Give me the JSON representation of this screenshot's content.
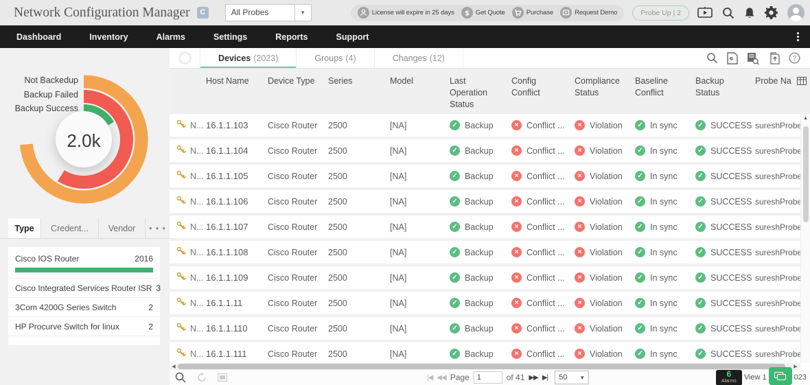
{
  "header": {
    "title": "Network Configuration Manager",
    "logo_badge": "C",
    "probe_selector": {
      "value": "All Probes",
      "arrow": "▾"
    },
    "license_bar": [
      {
        "icon": "license-icon",
        "label": "License will expire in 25 days"
      },
      {
        "icon": "get-quote-icon",
        "label": "Get Quote"
      },
      {
        "icon": "purchase-icon",
        "label": "Purchase"
      },
      {
        "icon": "request-demo-icon",
        "label": "Request Demo"
      }
    ],
    "probe_up_label": "Probe Up | 2"
  },
  "nav": {
    "items": [
      "Dashboard",
      "Inventory",
      "Alarms",
      "Settings",
      "Reports",
      "Support"
    ]
  },
  "sidebar": {
    "tabs": [
      {
        "label": "Type",
        "active": true
      },
      {
        "label": "Credent...",
        "active": false
      },
      {
        "label": "Vendor",
        "active": false
      },
      {
        "label": "• • •",
        "active": false
      }
    ],
    "list": [
      {
        "label": "Cisco IOS Router",
        "value": "2016",
        "bar": true
      },
      {
        "label": "Cisco Integrated Services Router ISR",
        "value": "3"
      },
      {
        "label": "3Com 4200G Series Switch",
        "value": "2"
      },
      {
        "label": "HP Procurve Switch for linux",
        "value": "2"
      }
    ]
  },
  "chart_data": {
    "type": "donut",
    "title": "",
    "center_label": "2.0k",
    "legend_position": "left",
    "segments": [
      {
        "label": "Not Backedup",
        "color": "#f4a44f",
        "sweep_deg": 265,
        "radius": 84,
        "thickness": 19
      },
      {
        "label": "Backup Failed",
        "color": "#f25b52",
        "sweep_deg": 212,
        "radius": 62.5,
        "thickness": 19
      },
      {
        "label": "Backup Success",
        "color": "#3fb06b",
        "sweep_deg": 60,
        "radius": 40,
        "thickness": 22
      }
    ]
  },
  "main": {
    "tabs": [
      {
        "label": "Devices",
        "count": "(2023)",
        "active": true
      },
      {
        "label": "Groups",
        "count": "(4)",
        "active": false
      },
      {
        "label": "Changes",
        "count": "(12)",
        "active": false
      }
    ]
  },
  "table": {
    "columns": [
      "Host Name",
      "Device Type",
      "Series",
      "Model",
      "Last Operation Status",
      "Config Conflict",
      "Compliance Status",
      "Baseline Conflict",
      "Backup Status",
      "Probe Na"
    ],
    "rows": [
      {
        "name": "N...",
        "host": "16.1.1.103",
        "device_type": "Cisco Router",
        "series": "2500",
        "model": "[NA]",
        "last_operation": {
          "text": "Backup",
          "state": "ok"
        },
        "config_conflict": {
          "text": "Conflict ...",
          "state": "bad"
        },
        "compliance": {
          "text": "Violation",
          "state": "bad"
        },
        "baseline": {
          "text": "In sync",
          "state": "ok"
        },
        "backup_status": {
          "text": "SUCCESS",
          "state": "ok"
        },
        "probe": "sureshProbe"
      },
      {
        "name": "N...",
        "host": "16.1.1.104",
        "device_type": "Cisco Router",
        "series": "2500",
        "model": "[NA]",
        "last_operation": {
          "text": "Backup",
          "state": "ok"
        },
        "config_conflict": {
          "text": "Conflict ...",
          "state": "bad"
        },
        "compliance": {
          "text": "Violation",
          "state": "bad"
        },
        "baseline": {
          "text": "In sync",
          "state": "ok"
        },
        "backup_status": {
          "text": "SUCCESS",
          "state": "ok"
        },
        "probe": "sureshProbe"
      },
      {
        "name": "N...",
        "host": "16.1.1.105",
        "device_type": "Cisco Router",
        "series": "2500",
        "model": "[NA]",
        "last_operation": {
          "text": "Backup",
          "state": "ok"
        },
        "config_conflict": {
          "text": "Conflict ...",
          "state": "bad"
        },
        "compliance": {
          "text": "Violation",
          "state": "bad"
        },
        "baseline": {
          "text": "In sync",
          "state": "ok"
        },
        "backup_status": {
          "text": "SUCCESS",
          "state": "ok"
        },
        "probe": "sureshProbe"
      },
      {
        "name": "N...",
        "host": "16.1.1.106",
        "device_type": "Cisco Router",
        "series": "2500",
        "model": "[NA]",
        "last_operation": {
          "text": "Backup",
          "state": "ok"
        },
        "config_conflict": {
          "text": "Conflict ...",
          "state": "bad"
        },
        "compliance": {
          "text": "Violation",
          "state": "bad"
        },
        "baseline": {
          "text": "In sync",
          "state": "ok"
        },
        "backup_status": {
          "text": "SUCCESS",
          "state": "ok"
        },
        "probe": "sureshProbe"
      },
      {
        "name": "N...",
        "host": "16.1.1.107",
        "device_type": "Cisco Router",
        "series": "2500",
        "model": "[NA]",
        "last_operation": {
          "text": "Backup",
          "state": "ok"
        },
        "config_conflict": {
          "text": "Conflict ...",
          "state": "bad"
        },
        "compliance": {
          "text": "Violation",
          "state": "bad"
        },
        "baseline": {
          "text": "In sync",
          "state": "ok"
        },
        "backup_status": {
          "text": "SUCCESS",
          "state": "ok"
        },
        "probe": "sureshProbe"
      },
      {
        "name": "N...",
        "host": "16.1.1.108",
        "device_type": "Cisco Router",
        "series": "2500",
        "model": "[NA]",
        "last_operation": {
          "text": "Backup",
          "state": "ok"
        },
        "config_conflict": {
          "text": "Conflict ...",
          "state": "bad"
        },
        "compliance": {
          "text": "Violation",
          "state": "bad"
        },
        "baseline": {
          "text": "In sync",
          "state": "ok"
        },
        "backup_status": {
          "text": "SUCCESS",
          "state": "ok"
        },
        "probe": "sureshProbe"
      },
      {
        "name": "N...",
        "host": "16.1.1.109",
        "device_type": "Cisco Router",
        "series": "2500",
        "model": "[NA]",
        "last_operation": {
          "text": "Backup",
          "state": "ok"
        },
        "config_conflict": {
          "text": "Conflict ...",
          "state": "bad"
        },
        "compliance": {
          "text": "Violation",
          "state": "bad"
        },
        "baseline": {
          "text": "In sync",
          "state": "ok"
        },
        "backup_status": {
          "text": "SUCCESS",
          "state": "ok"
        },
        "probe": "sureshProbe"
      },
      {
        "name": "N...",
        "host": "16.1.1.11",
        "device_type": "Cisco Router",
        "series": "2500",
        "model": "[NA]",
        "last_operation": {
          "text": "Backup",
          "state": "ok"
        },
        "config_conflict": {
          "text": "Conflict ...",
          "state": "bad"
        },
        "compliance": {
          "text": "Violation",
          "state": "bad"
        },
        "baseline": {
          "text": "In sync",
          "state": "ok"
        },
        "backup_status": {
          "text": "SUCCESS",
          "state": "ok"
        },
        "probe": "sureshProbe"
      },
      {
        "name": "N...",
        "host": "16.1.1.110",
        "device_type": "Cisco Router",
        "series": "2500",
        "model": "[NA]",
        "last_operation": {
          "text": "Backup",
          "state": "ok"
        },
        "config_conflict": {
          "text": "Conflict ...",
          "state": "bad"
        },
        "compliance": {
          "text": "Violation",
          "state": "bad"
        },
        "baseline": {
          "text": "In sync",
          "state": "ok"
        },
        "backup_status": {
          "text": "SUCCESS",
          "state": "ok"
        },
        "probe": "sureshProbe"
      },
      {
        "name": "N...",
        "host": "16.1.1.111",
        "device_type": "Cisco Router",
        "series": "2500",
        "model": "[NA]",
        "last_operation": {
          "text": "Backup",
          "state": "ok"
        },
        "config_conflict": {
          "text": "Conflict ...",
          "state": "bad"
        },
        "compliance": {
          "text": "Violation",
          "state": "bad"
        },
        "baseline": {
          "text": "In sync",
          "state": "ok"
        },
        "backup_status": {
          "text": "SUCCESS",
          "state": "ok"
        },
        "probe": "sureshProbe"
      }
    ]
  },
  "icons": {
    "check": "✓",
    "cross": "×",
    "up_arrow": "▲",
    "left_arrow": "◀",
    "right_arrow": "▶",
    "first": "|◀",
    "prev": "◀◀",
    "next": "▶▶",
    "last": "▶|"
  },
  "footer": {
    "page_label": "Page",
    "page_value": "1",
    "of_label": "of 41",
    "page_size": "50",
    "alarms_count": "6",
    "alarms_label": "Alarms",
    "view_prefix": "View 1",
    "view_suffix": "023"
  }
}
